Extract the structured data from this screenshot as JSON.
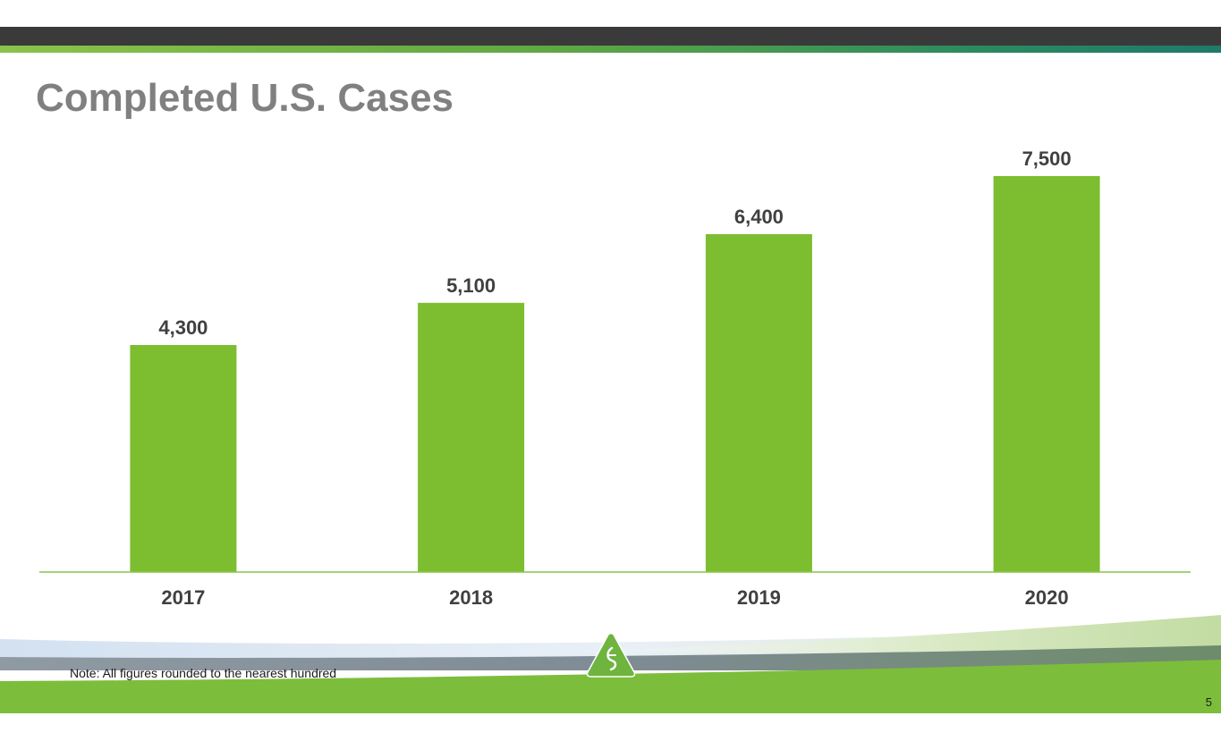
{
  "slide": {
    "title": "Completed U.S. Cases",
    "footnote": "Note: All figures rounded to the nearest hundred",
    "page_number": "5"
  },
  "colors": {
    "bar": "#7dbd30",
    "axis": "#8cc34a",
    "title": "#808080",
    "labels": "#404040",
    "top_bar": "#3a3a3a"
  },
  "icons": {
    "logo": "triangle-leaf-logo-icon"
  },
  "chart_data": {
    "type": "bar",
    "title": "Completed U.S. Cases",
    "categories": [
      "2017",
      "2018",
      "2019",
      "2020"
    ],
    "values": [
      4300,
      5100,
      6400,
      7500
    ],
    "value_labels": [
      "4,300",
      "5,100",
      "6,400",
      "7,500"
    ],
    "xlabel": "",
    "ylabel": "",
    "ylim": [
      0,
      7500
    ],
    "grid": false,
    "legend": "none"
  }
}
